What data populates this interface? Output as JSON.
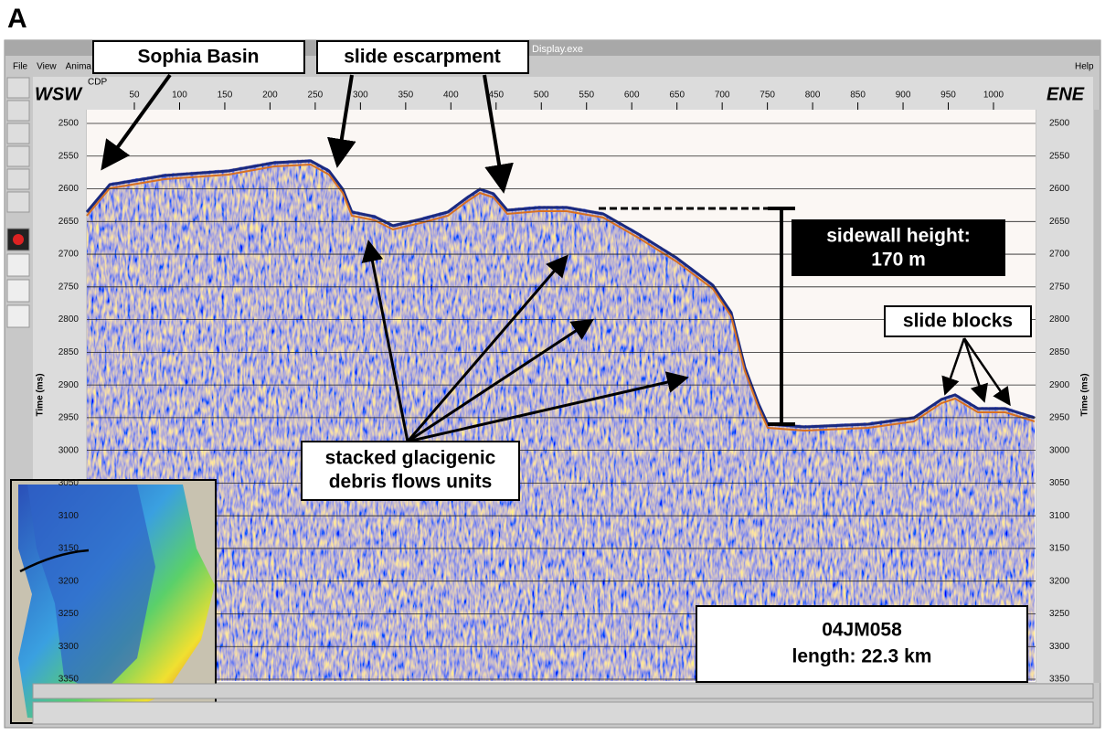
{
  "panel_label": "A",
  "window": {
    "title": "Display.exe",
    "menus": [
      "File",
      "View",
      "Anima"
    ],
    "help": "Help"
  },
  "axes": {
    "cdp_label": "CDP",
    "cdp_ticks": [
      50,
      100,
      150,
      200,
      250,
      300,
      350,
      400,
      450,
      500,
      550,
      600,
      650,
      700,
      750,
      800,
      850,
      900,
      950,
      1000
    ],
    "time_label": "Time (ms)",
    "time_ticks": [
      2500,
      2550,
      2600,
      2650,
      2700,
      2750,
      2800,
      2850,
      2900,
      2950,
      3000,
      3050,
      3100,
      3150,
      3200,
      3250,
      3300,
      3350
    ],
    "left_direction": "WSW",
    "right_direction": "ENE"
  },
  "annotations": {
    "sophia_basin": "Sophia Basin",
    "slide_escarpment": "slide escarpment",
    "sidewall": [
      "sidewall height:",
      "170 m"
    ],
    "slide_blocks": "slide blocks",
    "debris": [
      "stacked glacigenic",
      "debris flows units"
    ],
    "profile": [
      "04JM058",
      "length: 22.3 km"
    ]
  }
}
